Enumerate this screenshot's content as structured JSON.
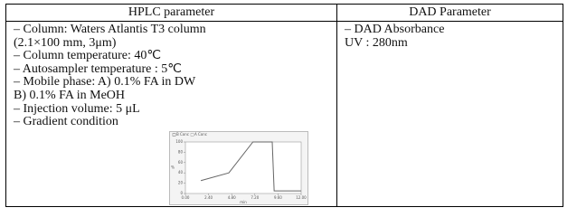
{
  "table": {
    "header": [
      "HPLC parameter",
      "DAD Parameter"
    ],
    "rows": [
      [
        [
          "– Column: Waters Atlantis T3 column",
          "(2.1×100 mm, 3μm)",
          "– Column temperature: 40℃",
          "– Autosampler temperature : 5℃",
          "– Mobile phase: A) 0.1% FA in DW",
          "B) 0.1% FA in MeOH",
          "– Injection volume: 5 μL",
          "– Gradient condition"
        ],
        [
          "– DAD Absorbance",
          "UV : 280nm"
        ]
      ]
    ]
  },
  "chart_data": {
    "type": "line",
    "xlabel": "min",
    "ylabel": "%",
    "x": [
      1.6,
      4.5,
      7.0,
      9.0,
      9.2,
      12.0
    ],
    "series": [
      {
        "name": "B Conc",
        "color": "#666666",
        "values": [
          25,
          40,
          100,
          100,
          5,
          5
        ]
      },
      {
        "name": "A Conc",
        "color": "#999999",
        "values": [
          null,
          null,
          null,
          null,
          null,
          null
        ]
      }
    ],
    "xlim": [
      0,
      12
    ],
    "ylim": [
      0,
      100
    ],
    "xticks": [
      {
        "value": 0,
        "label": "0.00"
      },
      {
        "value": 2.4,
        "label": "2.40"
      },
      {
        "value": 4.8,
        "label": "4.80"
      },
      {
        "value": 7.2,
        "label": "7.20"
      },
      {
        "value": 9.6,
        "label": "9.60"
      },
      {
        "value": 12,
        "label": "12.00"
      }
    ],
    "yticks": [
      0,
      20,
      40,
      60,
      80,
      100
    ]
  }
}
